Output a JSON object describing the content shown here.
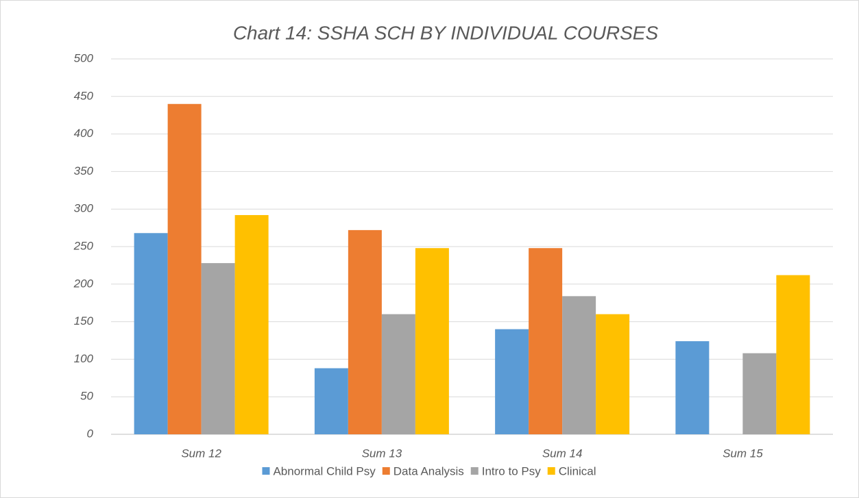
{
  "chart_data": {
    "type": "bar",
    "title": "Chart 14: SSHA SCH BY INDIVIDUAL COURSES",
    "categories": [
      "Sum 12",
      "Sum 13",
      "Sum 14",
      "Sum 15"
    ],
    "series": [
      {
        "name": "Abnormal Child Psy",
        "color": "#5b9bd5",
        "values": [
          268,
          88,
          140,
          124
        ]
      },
      {
        "name": "Data Analysis",
        "color": "#ed7d31",
        "values": [
          440,
          272,
          248,
          0
        ]
      },
      {
        "name": "Intro to Psy",
        "color": "#a5a5a5",
        "values": [
          228,
          160,
          184,
          108
        ]
      },
      {
        "name": "Clinical",
        "color": "#ffc000",
        "values": [
          292,
          248,
          160,
          212
        ]
      }
    ],
    "ylim": [
      0,
      500
    ],
    "yticks": [
      0,
      50,
      100,
      150,
      200,
      250,
      300,
      350,
      400,
      450,
      500
    ],
    "grid": true,
    "legend": "bottom"
  }
}
